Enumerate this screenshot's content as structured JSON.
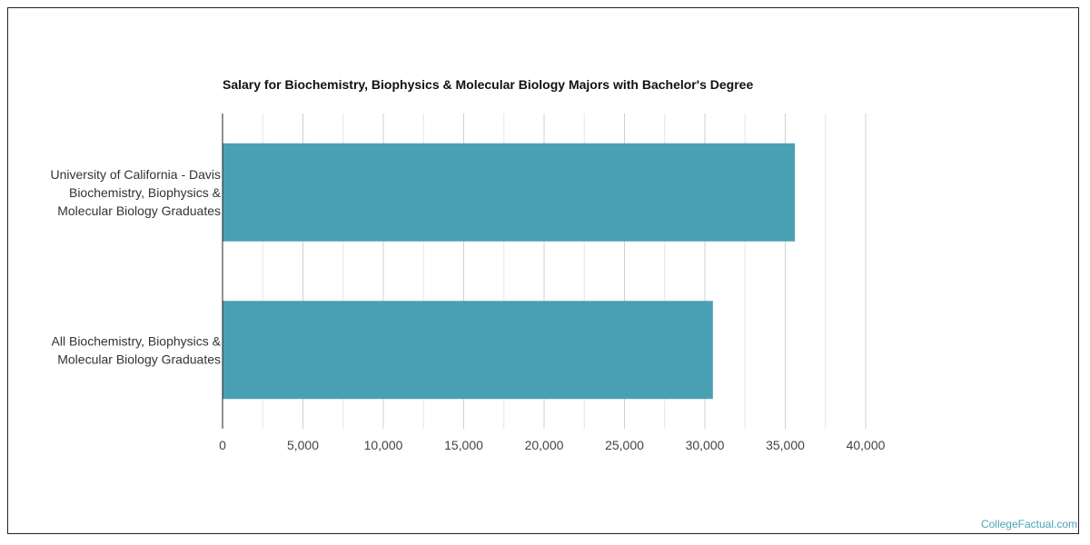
{
  "branding": {
    "watermark": "CollegeFactual.com"
  },
  "colors": {
    "bar": "#4aa0b3",
    "grid": "#d0d0d0",
    "axis": "#222222"
  },
  "chart_data": {
    "type": "bar",
    "orientation": "horizontal",
    "title": "Salary for Biochemistry, Biophysics & Molecular Biology Majors with Bachelor's Degree",
    "categories": [
      [
        "University of California - Davis",
        "Biochemistry, Biophysics &",
        "Molecular Biology Graduates"
      ],
      [
        "All Biochemistry, Biophysics &",
        "Molecular Biology Graduates"
      ]
    ],
    "values": [
      35600,
      30500
    ],
    "xlim": [
      0,
      40000
    ],
    "xticks": [
      0,
      5000,
      10000,
      15000,
      20000,
      25000,
      30000,
      35000,
      40000
    ],
    "xtick_labels": [
      "0",
      "5,000",
      "10,000",
      "15,000",
      "20,000",
      "25,000",
      "30,000",
      "35,000",
      "40,000"
    ],
    "grid": true,
    "legend": "none"
  }
}
